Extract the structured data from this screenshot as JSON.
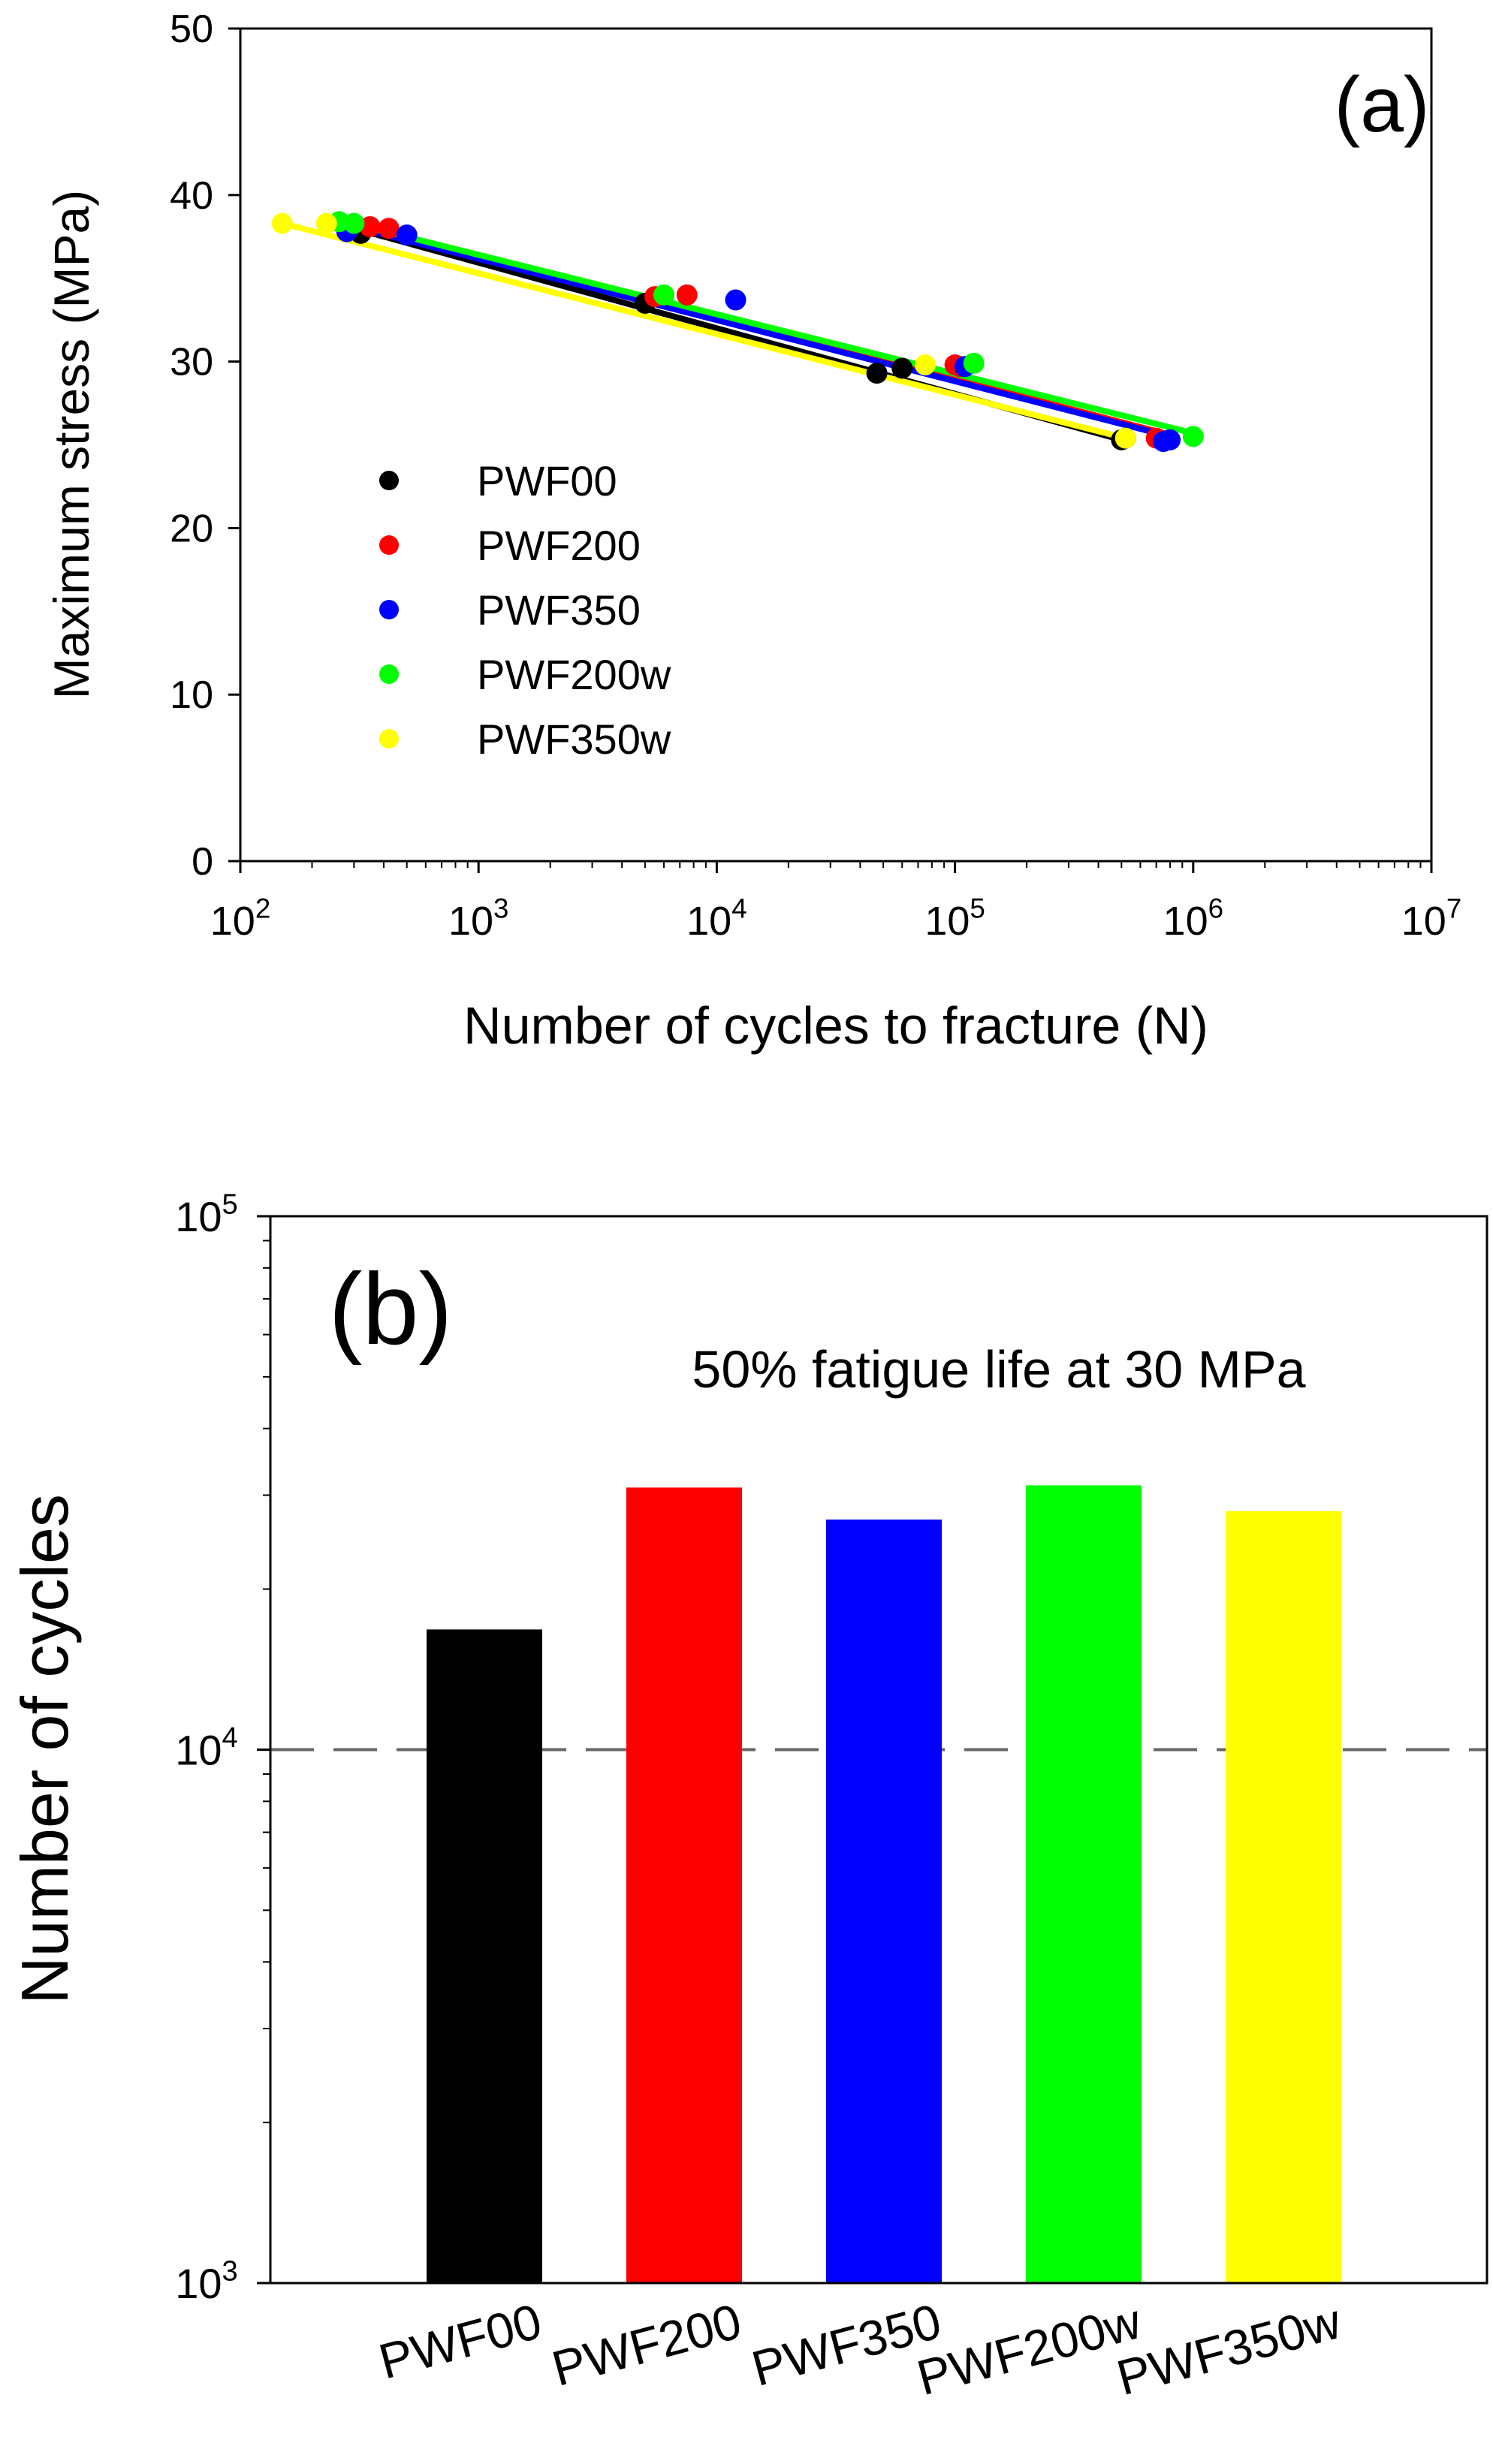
{
  "chart_data": [
    {
      "type": "scatter",
      "panel_label": "(a)",
      "xlabel": "Number of cycles to fracture (N)",
      "ylabel": "Maximum stress (MPa)",
      "xscale": "log",
      "xlim": [
        100,
        10000000
      ],
      "ylim": [
        0,
        50
      ],
      "xticks": [
        {
          "value": 100,
          "base": "10",
          "exp": "2"
        },
        {
          "value": 1000,
          "base": "10",
          "exp": "3"
        },
        {
          "value": 10000,
          "base": "10",
          "exp": "4"
        },
        {
          "value": 100000,
          "base": "10",
          "exp": "5"
        },
        {
          "value": 1000000,
          "base": "10",
          "exp": "6"
        },
        {
          "value": 10000000,
          "base": "10",
          "exp": "7"
        }
      ],
      "yticks": [
        {
          "value": 0,
          "label": "0"
        },
        {
          "value": 10,
          "label": "10"
        },
        {
          "value": 20,
          "label": "20"
        },
        {
          "value": 30,
          "label": "30"
        },
        {
          "value": 40,
          "label": "40"
        },
        {
          "value": 50,
          "label": "50"
        }
      ],
      "legend_position": "center-left",
      "series": [
        {
          "name": "PWF00",
          "color": "#000000",
          "points": [
            [
              300,
              38.0
            ],
            [
              320,
              37.7
            ],
            [
              5000,
              33.5
            ],
            [
              47000,
              29.3
            ],
            [
              60000,
              29.6
            ],
            [
              500000,
              25.3
            ],
            [
              520000,
              25.4
            ]
          ],
          "fit": [
            [
              300,
              38.0
            ],
            [
              500000,
              25.3
            ]
          ]
        },
        {
          "name": "PWF200",
          "color": "#ff0000",
          "points": [
            [
              350,
              38.1
            ],
            [
              420,
              38.0
            ],
            [
              5500,
              33.9
            ],
            [
              7500,
              34.0
            ],
            [
              100000,
              29.8
            ],
            [
              105000,
              29.7
            ],
            [
              700000,
              25.4
            ]
          ],
          "fit": [
            [
              320,
              38.2
            ],
            [
              800000,
              25.6
            ]
          ]
        },
        {
          "name": "PWF350",
          "color": "#0000ff",
          "points": [
            [
              280,
              37.8
            ],
            [
              500,
              37.6
            ],
            [
              12000,
              33.7
            ],
            [
              110000,
              29.7
            ],
            [
              750000,
              25.2
            ],
            [
              800000,
              25.3
            ]
          ],
          "fit": [
            [
              280,
              38.2
            ],
            [
              800000,
              25.5
            ]
          ]
        },
        {
          "name": "PWF200w",
          "color": "#00ff00",
          "points": [
            [
              260,
              38.4
            ],
            [
              300,
              38.3
            ],
            [
              6000,
              34.0
            ],
            [
              120000,
              29.9
            ],
            [
              1000000,
              25.5
            ]
          ],
          "fit": [
            [
              260,
              38.5
            ],
            [
              1000000,
              25.7
            ]
          ]
        },
        {
          "name": "PWF350w",
          "color": "#ffff00",
          "points": [
            [
              150,
              38.3
            ],
            [
              230,
              38.3
            ],
            [
              75000,
              29.8
            ],
            [
              520000,
              25.4
            ]
          ],
          "fit": [
            [
              150,
              38.3
            ],
            [
              520000,
              25.4
            ]
          ]
        }
      ]
    },
    {
      "type": "bar",
      "panel_label": "(b)",
      "annotation": "50% fatigue life at 30 MPa",
      "ylabel": "Number of cycles",
      "yscale": "log",
      "ylim": [
        1000,
        100000
      ],
      "yticks": [
        {
          "value": 1000,
          "base": "10",
          "exp": "3"
        },
        {
          "value": 10000,
          "base": "10",
          "exp": "4"
        },
        {
          "value": 100000,
          "base": "10",
          "exp": "5"
        }
      ],
      "reference_line": 10000,
      "categories": [
        "PWF00",
        "PWF200",
        "PWF350",
        "PWF200w",
        "PWF350w"
      ],
      "values": [
        16800,
        31000,
        27000,
        31300,
        28000
      ],
      "colors": [
        "#000000",
        "#ff0000",
        "#0000ff",
        "#00ff00",
        "#ffff00"
      ]
    }
  ]
}
